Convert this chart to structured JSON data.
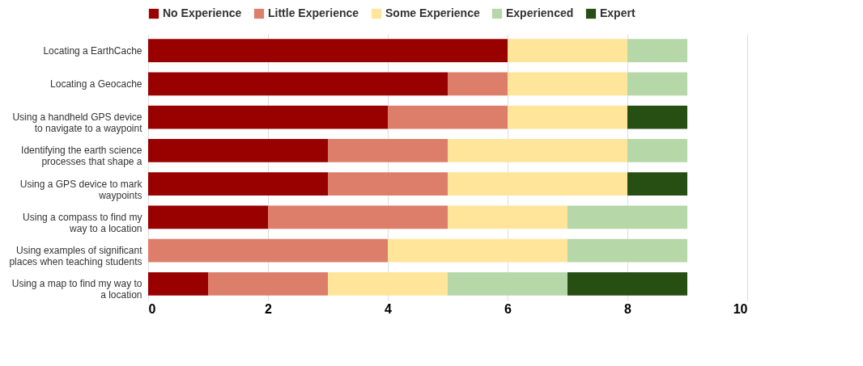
{
  "chart_data": {
    "type": "bar",
    "orientation": "horizontal",
    "stacked": true,
    "categories": [
      "Locating a EarthCache",
      "Locating a Geocache",
      "Using a handheld GPS device to navigate to a waypoint",
      "Identifying the earth science processes that shape a",
      "Using a GPS device to mark waypoints",
      "Using a compass to find my way to a location",
      "Using examples of significant places when teaching students",
      "Using a map to find my way to a location"
    ],
    "series": [
      {
        "name": "No Experience",
        "color": "#990000",
        "values": [
          6,
          5,
          4,
          3,
          3,
          2,
          0,
          1
        ]
      },
      {
        "name": "Little Experience",
        "color": "#dd7e6b",
        "values": [
          0,
          1,
          2,
          2,
          2,
          3,
          4,
          2
        ]
      },
      {
        "name": "Some Experience",
        "color": "#ffe599",
        "values": [
          2,
          2,
          2,
          3,
          3,
          2,
          3,
          2
        ]
      },
      {
        "name": "Experienced",
        "color": "#b6d7a8",
        "values": [
          1,
          1,
          0,
          1,
          0,
          2,
          2,
          2
        ]
      },
      {
        "name": "Expert",
        "color": "#274e13",
        "values": [
          0,
          0,
          1,
          0,
          1,
          0,
          0,
          2
        ]
      }
    ],
    "xlim": [
      0,
      10
    ],
    "xticks": [
      0,
      2,
      4,
      6,
      8,
      10
    ],
    "grid": "x",
    "legend": "top"
  }
}
